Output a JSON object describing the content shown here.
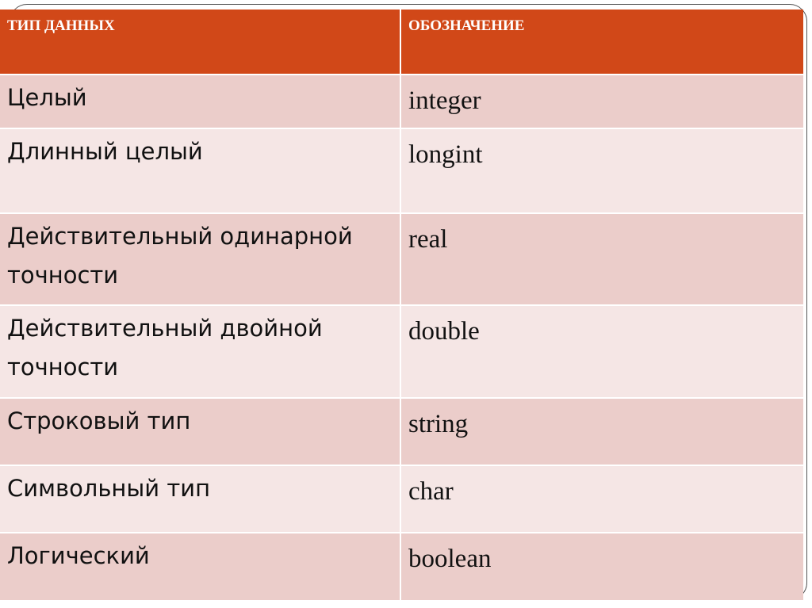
{
  "table": {
    "header": [
      "ТИП ДАННЫХ",
      "ОБОЗНАЧЕНИЕ"
    ],
    "rows": [
      {
        "type": "Целый",
        "name": "integer"
      },
      {
        "type": "Длинный целый",
        "name": "longint"
      },
      {
        "type": "Действительный одинарной точности",
        "name": "real"
      },
      {
        "type": "Действительный двойной точности",
        "name": "double"
      },
      {
        "type": "Строковый тип",
        "name": "string"
      },
      {
        "type": "Символьный тип",
        "name": "char"
      },
      {
        "type": "Логический",
        "name": "boolean"
      }
    ]
  },
  "colors": {
    "header": "#d14818",
    "row_dark": "#ebcdca",
    "row_light": "#f5e6e5"
  }
}
